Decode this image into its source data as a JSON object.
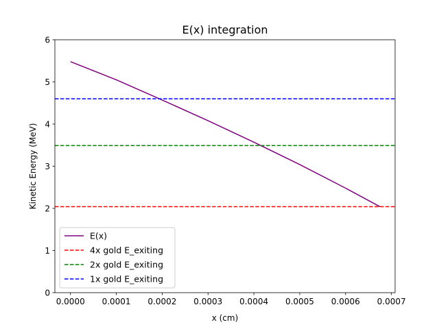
{
  "chart_data": {
    "type": "line",
    "title": "E(x) integration",
    "xlabel": "x (cm)",
    "ylabel": "Kinetic Energy (MeV)",
    "xlim": [
      -3.4e-05,
      0.000708
    ],
    "ylim": [
      0,
      6
    ],
    "x_ticks": [
      0.0,
      0.0001,
      0.0002,
      0.0003,
      0.0004,
      0.0005,
      0.0006,
      0.0007
    ],
    "x_tick_labels": [
      "0.0000",
      "0.0001",
      "0.0002",
      "0.0003",
      "0.0004",
      "0.0005",
      "0.0006",
      "0.0007"
    ],
    "y_ticks": [
      0,
      1,
      2,
      3,
      4,
      5,
      6
    ],
    "y_tick_labels": [
      "0",
      "1",
      "2",
      "3",
      "4",
      "5",
      "6"
    ],
    "grid": false,
    "legend_position": "lower-left",
    "series": [
      {
        "name": "E(x)",
        "style": "solid",
        "color": "#800080",
        "x": [
          0.0,
          0.0001,
          0.0002,
          0.0003,
          0.0004,
          0.0005,
          0.0006,
          0.000675
        ],
        "y": [
          5.48,
          5.05,
          4.57,
          4.08,
          3.57,
          3.04,
          2.48,
          2.04
        ]
      },
      {
        "name": "4x gold E_exiting",
        "style": "dashed",
        "color": "#ff0000",
        "hline": 2.04
      },
      {
        "name": "2x gold E_exiting",
        "style": "dashed",
        "color": "#008000",
        "hline": 3.49
      },
      {
        "name": "1x gold E_exiting",
        "style": "dashed",
        "color": "#0000ff",
        "hline": 4.6
      }
    ]
  }
}
